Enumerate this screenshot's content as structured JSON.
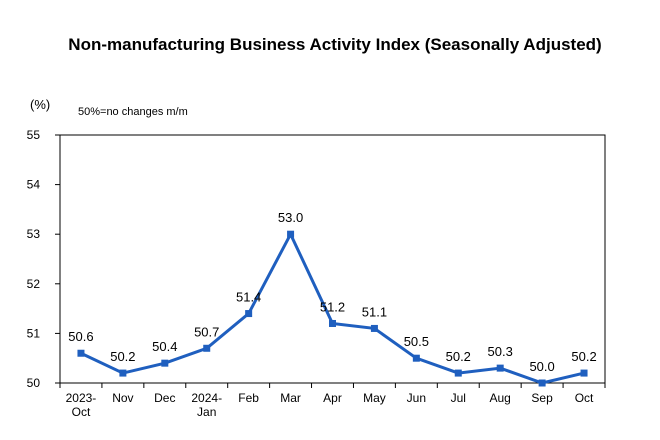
{
  "chart_data": {
    "type": "line",
    "title": "Non-manufacturing Business Activity Index (Seasonally Adjusted)",
    "ylabel": "(%)",
    "annotation": "50%=no changes m/m",
    "categories": [
      [
        "2023-",
        "Oct"
      ],
      [
        "Nov"
      ],
      [
        "Dec"
      ],
      [
        "2024-",
        "Jan"
      ],
      [
        "Feb"
      ],
      [
        "Mar"
      ],
      [
        "Apr"
      ],
      [
        "May"
      ],
      [
        "Jun"
      ],
      [
        "Jul"
      ],
      [
        "Aug"
      ],
      [
        "Sep"
      ],
      [
        "Oct"
      ]
    ],
    "series": [
      {
        "values": [
          50.6,
          50.2,
          50.4,
          50.7,
          51.4,
          53.0,
          51.2,
          51.1,
          50.5,
          50.2,
          50.3,
          50.0,
          50.2
        ]
      }
    ],
    "data_labels": [
      "50.6",
      "50.2",
      "50.4",
      "50.7",
      "51.4",
      "53.0",
      "51.2",
      "51.1",
      "50.5",
      "50.2",
      "50.3",
      "50.0",
      "50.2"
    ],
    "yticks": [
      "50",
      "51",
      "52",
      "53",
      "54",
      "55"
    ],
    "ylim": [
      50,
      55
    ],
    "grid": false,
    "legend": "none",
    "line_color": "#1f5fbf"
  }
}
